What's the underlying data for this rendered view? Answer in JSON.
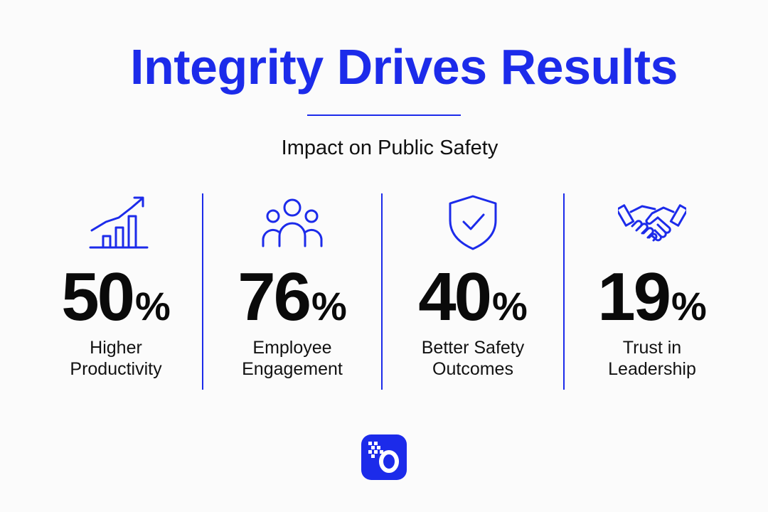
{
  "title": "Integrity Drives Results",
  "subtitle": "Impact on Public Safety",
  "stats": [
    {
      "icon": "growth-chart-icon",
      "value": "50",
      "unit": "%",
      "label_line1": "Higher",
      "label_line2": "Productivity"
    },
    {
      "icon": "people-group-icon",
      "value": "76",
      "unit": "%",
      "label_line1": "Employee",
      "label_line2": "Engagement"
    },
    {
      "icon": "shield-check-icon",
      "value": "40",
      "unit": "%",
      "label_line1": "Better Safety",
      "label_line2": "Outcomes"
    },
    {
      "icon": "handshake-icon",
      "value": "19",
      "unit": "%",
      "label_line1": "Trust in",
      "label_line2": "Leadership"
    }
  ],
  "colors": {
    "accent": "#1c2bea",
    "text": "#0a0a0a",
    "background": "#fbfbfb"
  },
  "logo_icon": "brand-logo-icon"
}
